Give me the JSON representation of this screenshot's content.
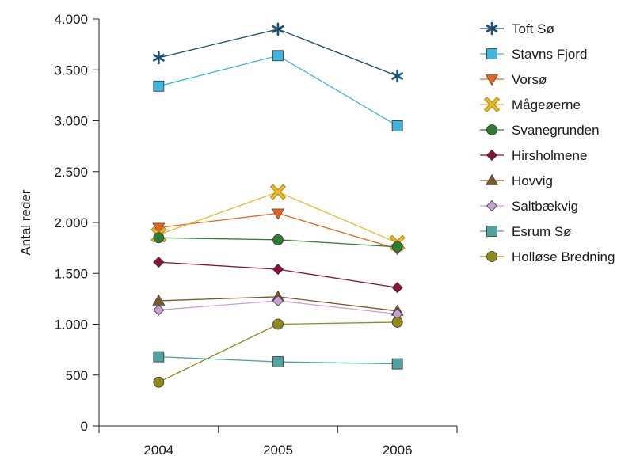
{
  "chart_data": {
    "type": "line",
    "title": "",
    "xlabel": "",
    "ylabel": "Antal reder",
    "categories": [
      "2004",
      "2005",
      "2006"
    ],
    "ylim": [
      0,
      4000
    ],
    "yticks": [
      0,
      500,
      1000,
      1500,
      2000,
      2500,
      3000,
      3500,
      4000
    ],
    "ytick_labels": [
      "0",
      "500",
      "1.000",
      "1.500",
      "2.000",
      "2.500",
      "3.000",
      "3.500",
      "4.000"
    ],
    "grid": false,
    "legend_position": "right",
    "series": [
      {
        "name": "Toft Sø",
        "values": [
          3620,
          3900,
          3440
        ],
        "color": "#1b4f72",
        "marker": "star"
      },
      {
        "name": "Stavns Fjord",
        "values": [
          3340,
          3640,
          2950
        ],
        "color": "#3bb6df",
        "marker": "square"
      },
      {
        "name": "Vorsø",
        "values": [
          1950,
          2090,
          1740
        ],
        "color": "#e8651e",
        "marker": "triangle-down"
      },
      {
        "name": "Mågeøerne",
        "values": [
          1880,
          2300,
          1800
        ],
        "color": "#e7bb2b",
        "marker": "x-box"
      },
      {
        "name": "Svanegrunden",
        "values": [
          1850,
          1830,
          1760
        ],
        "color": "#2e7d32",
        "marker": "circle"
      },
      {
        "name": "Hirsholmene",
        "values": [
          1610,
          1540,
          1360
        ],
        "color": "#8b1230",
        "marker": "diamond"
      },
      {
        "name": "Hovvig",
        "values": [
          1230,
          1270,
          1130
        ],
        "color": "#7a5a2a",
        "marker": "triangle-up"
      },
      {
        "name": "Saltbækvig",
        "values": [
          1140,
          1230,
          1100
        ],
        "color": "#c7a0d4",
        "marker": "diamond"
      },
      {
        "name": "Esrum Sø",
        "values": [
          680,
          630,
          610
        ],
        "color": "#4fa3a0",
        "marker": "square"
      },
      {
        "name": "Holløse Bredning",
        "values": [
          430,
          1000,
          1020
        ],
        "color": "#8f8a1a",
        "marker": "circle"
      }
    ]
  }
}
